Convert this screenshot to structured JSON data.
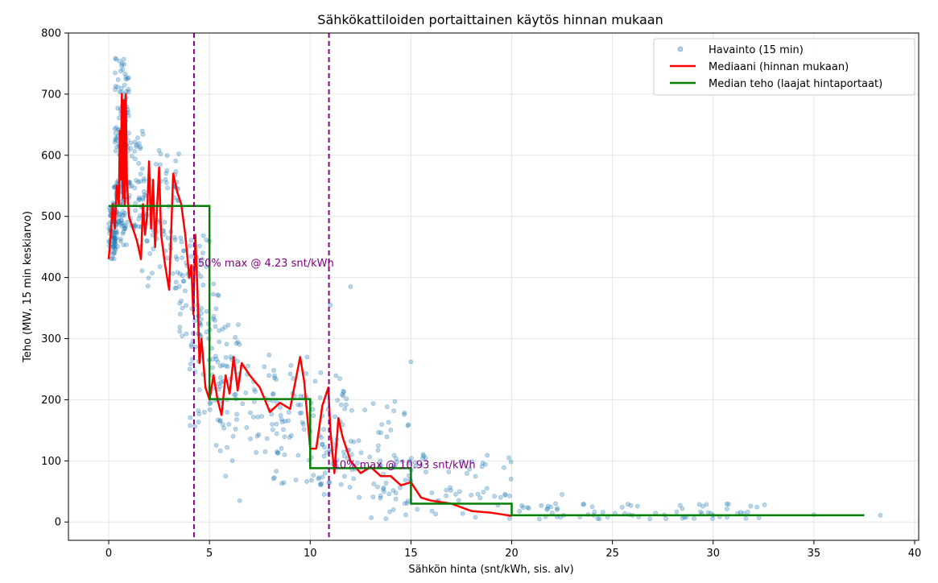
{
  "chart_data": {
    "type": "scatter",
    "title": "Sähkökattiloiden portaittainen käytös hinnan mukaan",
    "xlabel": "Sähkön hinta (snt/kWh, sis. alv)",
    "ylabel": "Teho (MW, 15 min keskiarvo)",
    "xlim": [
      -2,
      40.2
    ],
    "ylim": [
      -30,
      800
    ],
    "xticks": [
      0,
      5,
      10,
      15,
      20,
      25,
      30,
      35,
      40
    ],
    "yticks": [
      0,
      100,
      200,
      300,
      400,
      500,
      600,
      700,
      800
    ],
    "xtick_labels": [
      "0",
      "5",
      "10",
      "15",
      "20",
      "25",
      "30",
      "35",
      "40"
    ],
    "ytick_labels": [
      "0",
      "100",
      "200",
      "300",
      "400",
      "500",
      "600",
      "700",
      "800"
    ],
    "grid": true,
    "legend_position": "top-right",
    "colors": {
      "scatter": "#1f77b4",
      "median": "#ff0000",
      "steps": "#008000",
      "threshold": "#800080"
    },
    "series": [
      {
        "name": "Havainto (15 min)",
        "kind": "scatter",
        "clusters": [
          {
            "x": [
              0.0,
              0.4
            ],
            "y": [
              430,
              520
            ]
          },
          {
            "x": [
              0.2,
              0.9
            ],
            "y": [
              450,
              560
            ]
          },
          {
            "x": [
              0.3,
              1.0
            ],
            "y": [
              600,
              760
            ]
          },
          {
            "x": [
              0.6,
              1.8
            ],
            "y": [
              480,
              640
            ]
          },
          {
            "x": [
              1.5,
              3.5
            ],
            "y": [
              380,
              610
            ]
          },
          {
            "x": [
              3.5,
              5.5
            ],
            "y": [
              300,
              480
            ]
          },
          {
            "x": [
              4.0,
              6.5
            ],
            "y": [
              150,
              330
            ]
          },
          {
            "x": [
              5.0,
              10.0
            ],
            "y": [
              100,
              280
            ]
          },
          {
            "x": [
              8.0,
              12.0
            ],
            "y": [
              60,
              250
            ]
          },
          {
            "x": [
              10.0,
              15.0
            ],
            "y": [
              40,
              200
            ]
          },
          {
            "x": [
              13.0,
              20.0
            ],
            "y": [
              5,
              120
            ]
          },
          {
            "x": [
              20.0,
              33.0
            ],
            "y": [
              5,
              30
            ]
          }
        ],
        "extra_points": [
          {
            "x": 38.3,
            "y": 11
          },
          {
            "x": 35.0,
            "y": 12
          },
          {
            "x": 30.0,
            "y": 11
          },
          {
            "x": 26.0,
            "y": 11
          },
          {
            "x": 24.0,
            "y": 25
          },
          {
            "x": 22.5,
            "y": 45
          },
          {
            "x": 5.8,
            "y": 75
          },
          {
            "x": 6.5,
            "y": 35
          },
          {
            "x": 15.0,
            "y": 262
          },
          {
            "x": 12.0,
            "y": 385
          },
          {
            "x": 11.0,
            "y": 355
          }
        ]
      },
      {
        "name": "Mediaani (hinnan mukaan)",
        "kind": "line",
        "x": [
          0.0,
          0.1,
          0.2,
          0.3,
          0.4,
          0.5,
          0.55,
          0.6,
          0.65,
          0.7,
          0.75,
          0.8,
          0.85,
          0.9,
          1.0,
          1.2,
          1.4,
          1.6,
          1.7,
          1.8,
          1.9,
          2.0,
          2.1,
          2.2,
          2.3,
          2.5,
          2.6,
          2.8,
          3.0,
          3.2,
          3.4,
          3.6,
          3.8,
          4.0,
          4.1,
          4.2,
          4.3,
          4.4,
          4.5,
          4.6,
          4.8,
          5.0,
          5.2,
          5.4,
          5.6,
          5.8,
          6.0,
          6.2,
          6.4,
          6.6,
          7.0,
          7.5,
          8.0,
          8.5,
          9.0,
          9.5,
          9.7,
          10.0,
          10.3,
          10.6,
          10.9,
          11.0,
          11.2,
          11.4,
          11.6,
          12.0,
          12.5,
          13.0,
          13.5,
          14.0,
          14.5,
          15.0,
          15.5,
          16.0,
          17.0,
          18.0,
          19.0,
          20.0
        ],
        "y": [
          430,
          470,
          520,
          480,
          550,
          520,
          640,
          560,
          700,
          530,
          690,
          520,
          700,
          560,
          500,
          480,
          460,
          430,
          520,
          470,
          500,
          590,
          480,
          560,
          450,
          580,
          470,
          420,
          380,
          570,
          540,
          520,
          470,
          400,
          420,
          340,
          470,
          380,
          260,
          300,
          220,
          200,
          240,
          200,
          175,
          240,
          210,
          270,
          215,
          260,
          240,
          220,
          180,
          195,
          185,
          270,
          230,
          120,
          120,
          190,
          220,
          150,
          80,
          170,
          140,
          100,
          80,
          90,
          75,
          75,
          60,
          65,
          40,
          35,
          30,
          18,
          15,
          10
        ]
      },
      {
        "name": "Median teho (laajat hintaportaat)",
        "kind": "step",
        "steps": [
          {
            "from": 0,
            "to": 5,
            "value": 517
          },
          {
            "from": 5,
            "to": 10,
            "value": 201
          },
          {
            "from": 10,
            "to": 15,
            "value": 88
          },
          {
            "from": 15,
            "to": 20,
            "value": 30
          },
          {
            "from": 20,
            "to": 37.5,
            "value": 11
          }
        ]
      }
    ],
    "thresholds": [
      {
        "x": 4.23,
        "label": "50% max @ 4.23 snt/kWh",
        "label_y": 418
      },
      {
        "x": 10.93,
        "label": "10% max @ 10.93 snt/kWh",
        "label_y": 88
      }
    ],
    "legend": [
      {
        "label": "Havainto (15 min)",
        "kind": "scatter"
      },
      {
        "label": "Mediaani (hinnan mukaan)",
        "kind": "line"
      },
      {
        "label": "Median teho (laajat hintaportaat)",
        "kind": "step"
      }
    ]
  }
}
